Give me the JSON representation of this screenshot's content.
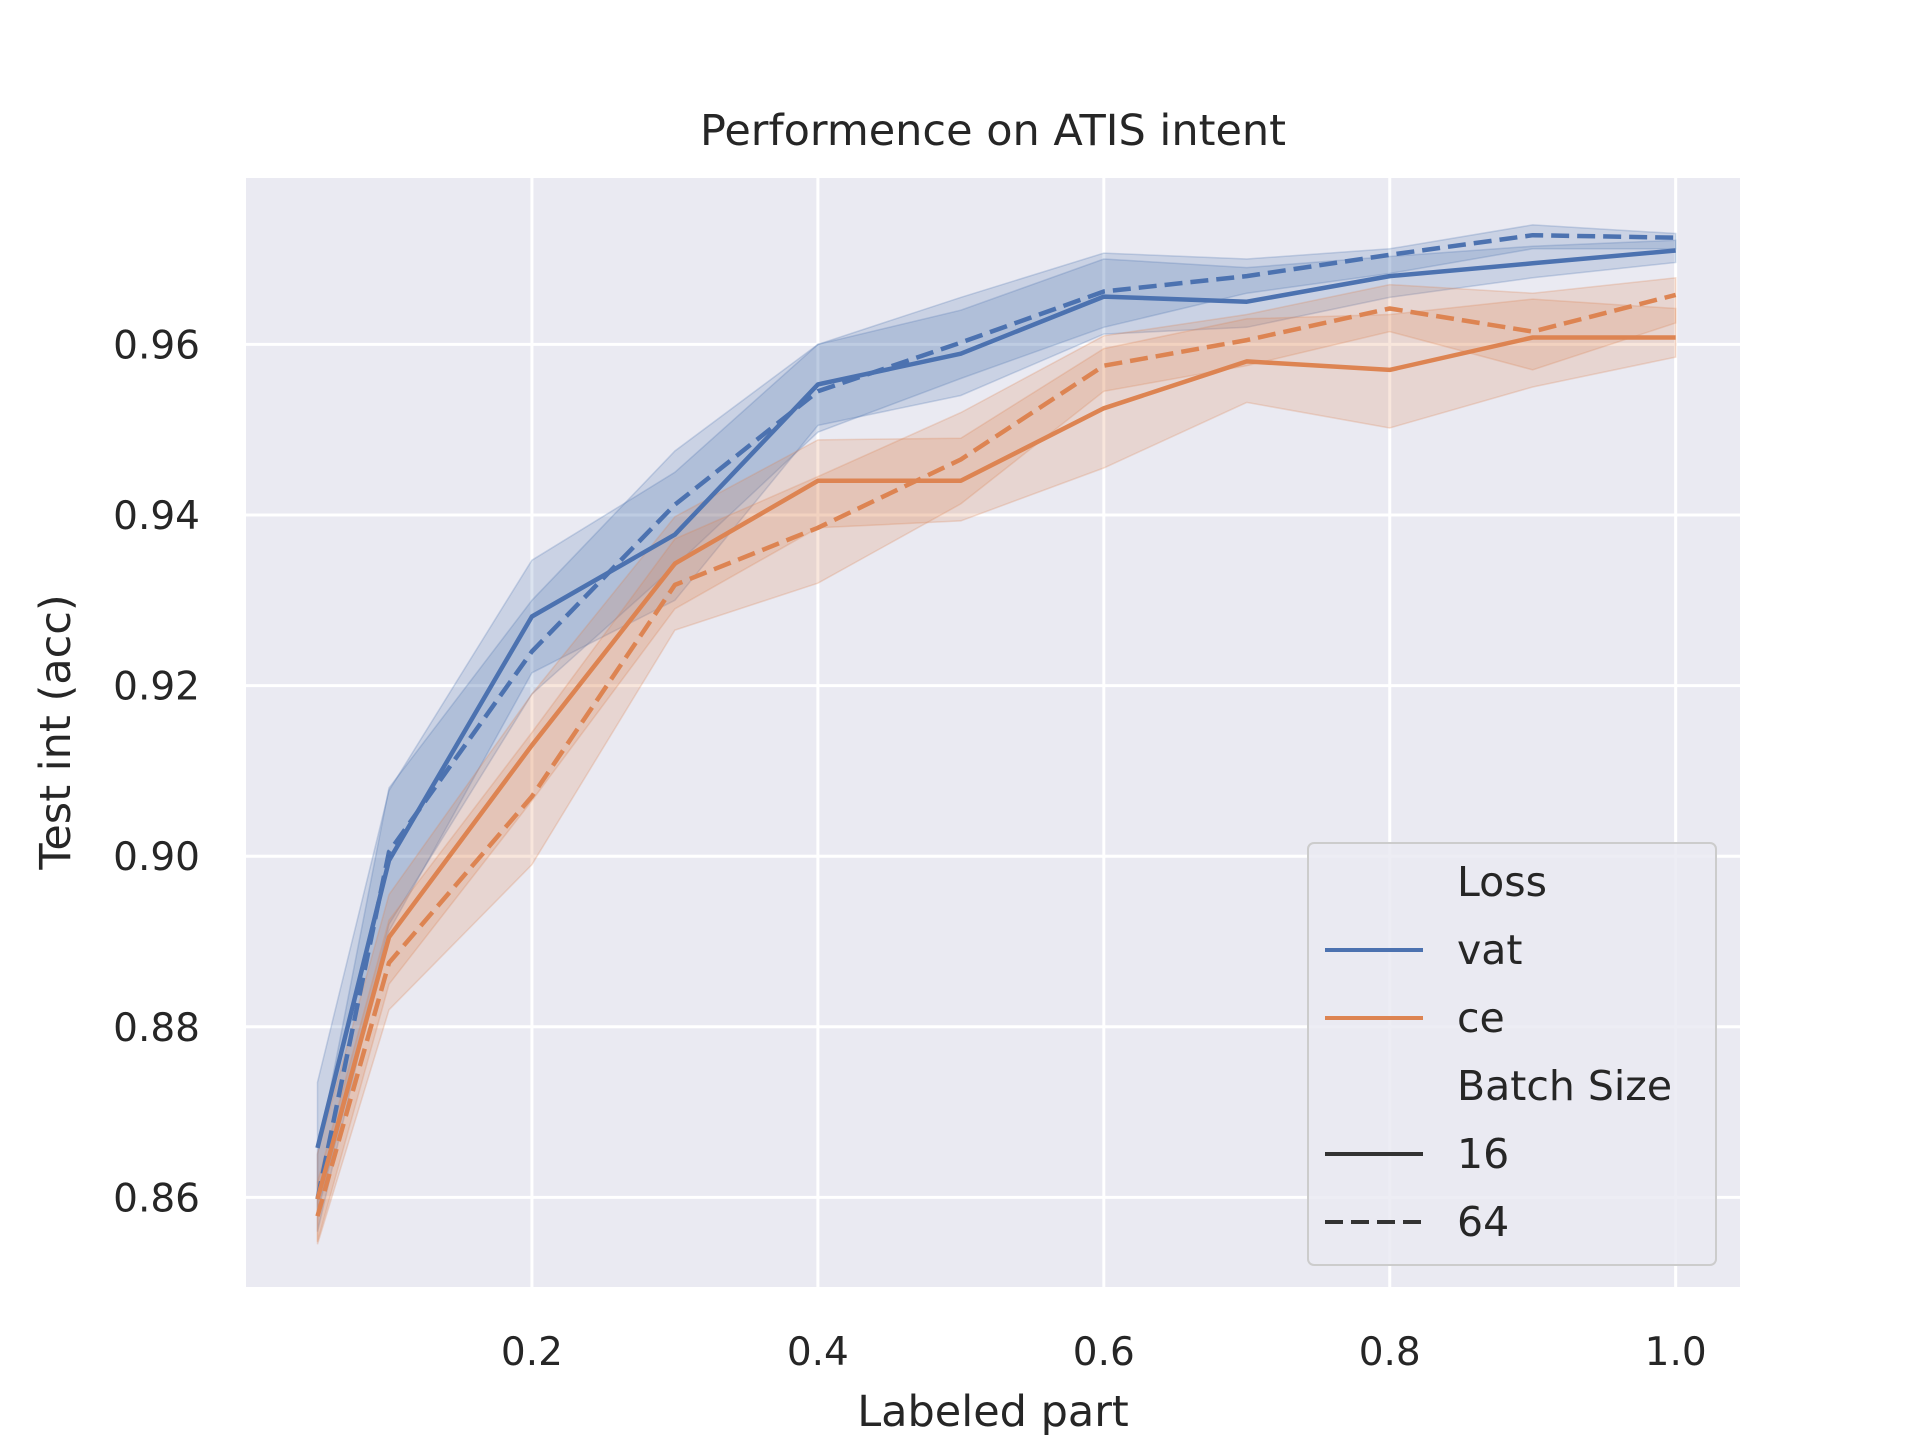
{
  "chart_data": {
    "type": "line",
    "title": "Performence on ATIS intent",
    "xlabel": "Labeled part",
    "ylabel": "Test int (acc)",
    "xlim": [
      0.0,
      1.045
    ],
    "ylim": [
      0.8495,
      0.9795
    ],
    "xticks": [
      "0.2",
      "0.4",
      "0.6",
      "0.8",
      "1.0"
    ],
    "yticks": [
      "0.86",
      "0.88",
      "0.90",
      "0.92",
      "0.94",
      "0.96"
    ],
    "grid": true,
    "legend_position": "bottom-right",
    "legend": {
      "hue_title": "Loss",
      "style_title": "Batch Size",
      "hue_entries": [
        {
          "label": "vat",
          "color": "#4c72b0"
        },
        {
          "label": "ce",
          "color": "#dd8452"
        }
      ],
      "style_entries": [
        {
          "label": "16",
          "dash": "solid"
        },
        {
          "label": "64",
          "dash": "dashed"
        }
      ]
    },
    "series": [
      {
        "loss": "vat",
        "batch": "16",
        "color": "#4c72b0",
        "dash": "solid",
        "x": [
          0.05,
          0.1,
          0.2,
          0.3,
          0.4,
          0.5,
          0.6,
          0.7,
          0.8,
          0.9,
          1.0
        ],
        "y": [
          0.8658,
          0.8995,
          0.9281,
          0.9377,
          0.9553,
          0.9589,
          0.9656,
          0.965,
          0.968,
          0.9695,
          0.971
        ],
        "ci_low": [
          0.8582,
          0.8912,
          0.9215,
          0.93,
          0.9505,
          0.954,
          0.9612,
          0.962,
          0.9655,
          0.9678,
          0.9696
        ],
        "ci_high": [
          0.8735,
          0.9077,
          0.9347,
          0.945,
          0.96,
          0.964,
          0.97,
          0.969,
          0.9703,
          0.9715,
          0.9722
        ]
      },
      {
        "loss": "vat",
        "batch": "64",
        "color": "#4c72b0",
        "dash": "dashed",
        "x": [
          0.05,
          0.1,
          0.2,
          0.3,
          0.4,
          0.5,
          0.6,
          0.7,
          0.8,
          0.9,
          1.0
        ],
        "y": [
          0.8598,
          0.9005,
          0.924,
          0.9412,
          0.9545,
          0.9602,
          0.9662,
          0.968,
          0.9705,
          0.9728,
          0.9725
        ],
        "ci_low": [
          0.856,
          0.892,
          0.919,
          0.934,
          0.9497,
          0.956,
          0.962,
          0.966,
          0.9683,
          0.9712,
          0.9712
        ],
        "ci_high": [
          0.865,
          0.908,
          0.93,
          0.9475,
          0.96,
          0.9655,
          0.9707,
          0.97,
          0.9712,
          0.974,
          0.973
        ]
      },
      {
        "loss": "ce",
        "batch": "16",
        "color": "#dd8452",
        "dash": "solid",
        "x": [
          0.05,
          0.1,
          0.2,
          0.3,
          0.4,
          0.5,
          0.6,
          0.7,
          0.8,
          0.9,
          1.0
        ],
        "y": [
          0.8598,
          0.8905,
          0.913,
          0.9343,
          0.944,
          0.944,
          0.9525,
          0.958,
          0.957,
          0.9608,
          0.9608
        ],
        "ci_low": [
          0.8548,
          0.885,
          0.9065,
          0.929,
          0.9385,
          0.9393,
          0.9455,
          0.9532,
          0.9502,
          0.955,
          0.9585
        ],
        "ci_high": [
          0.8652,
          0.8955,
          0.919,
          0.9398,
          0.9488,
          0.949,
          0.9595,
          0.963,
          0.9635,
          0.9653,
          0.9642
        ]
      },
      {
        "loss": "ce",
        "batch": "64",
        "color": "#dd8452",
        "dash": "dashed",
        "x": [
          0.05,
          0.1,
          0.2,
          0.3,
          0.4,
          0.5,
          0.6,
          0.7,
          0.8,
          0.9,
          1.0
        ],
        "y": [
          0.8578,
          0.8875,
          0.907,
          0.9318,
          0.9385,
          0.9465,
          0.9575,
          0.9605,
          0.9642,
          0.9615,
          0.9658
        ],
        "ci_low": [
          0.8545,
          0.882,
          0.899,
          0.9265,
          0.932,
          0.9413,
          0.9545,
          0.9575,
          0.9615,
          0.957,
          0.9625
        ],
        "ci_high": [
          0.8618,
          0.8925,
          0.9145,
          0.9372,
          0.9445,
          0.952,
          0.961,
          0.9635,
          0.967,
          0.966,
          0.9678
        ]
      }
    ]
  }
}
